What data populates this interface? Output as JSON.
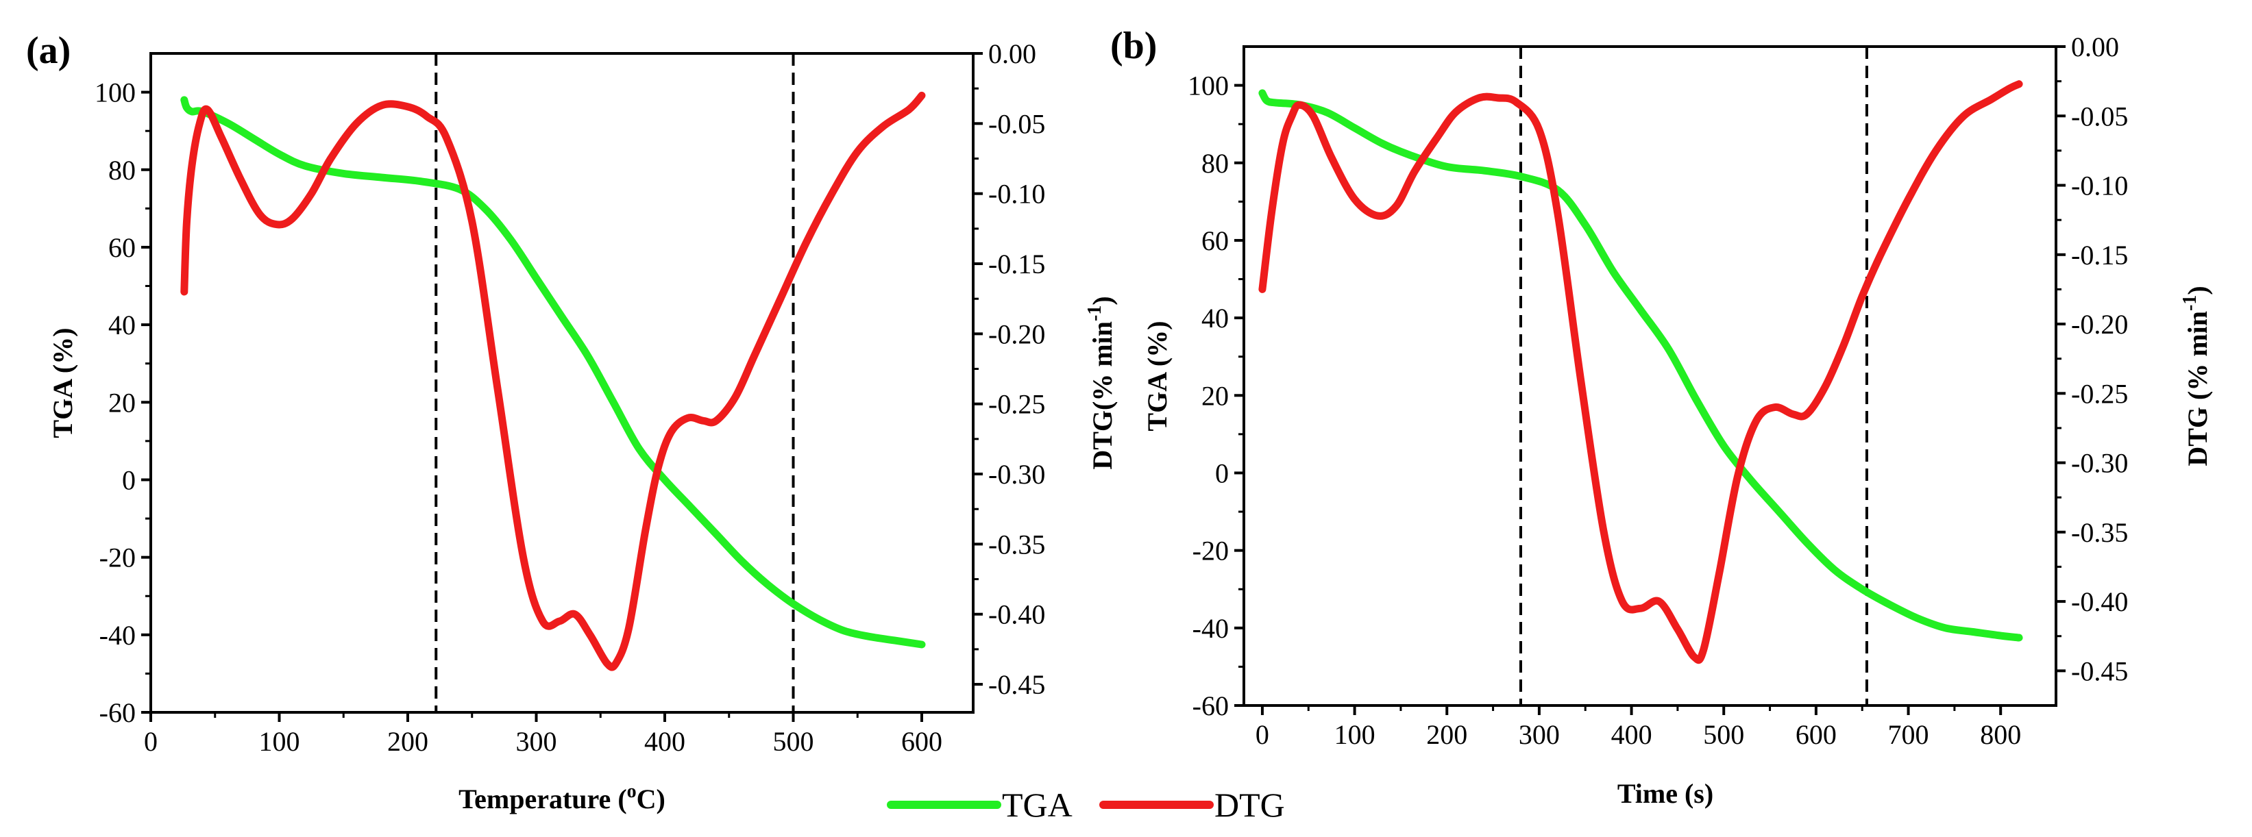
{
  "figure": {
    "panels": [
      "(a)",
      "(b)"
    ],
    "legend": [
      {
        "label": "TGA",
        "color": "#22ee22"
      },
      {
        "label": "DTG",
        "color": "#ee1c1c"
      }
    ]
  },
  "chart_data": [
    {
      "type": "line",
      "panel_label": "(a)",
      "xlabel_main": "Temperature (",
      "xlabel_sup": "o",
      "xlabel_tail": "C)",
      "ylabel": "TGA (%)",
      "y2label_main": "DTG(% min",
      "y2label_sup": "-1",
      "y2label_tail": ")",
      "xlim": [
        0,
        640
      ],
      "ylim": [
        -60,
        110
      ],
      "y2lim": [
        -0.47,
        0.0
      ],
      "xticks": [
        "0",
        "100",
        "200",
        "300",
        "400",
        "500",
        "600"
      ],
      "xtick_values": [
        0,
        100,
        200,
        300,
        400,
        500,
        600
      ],
      "yticks": [
        "-60",
        "-40",
        "-20",
        "0",
        "20",
        "40",
        "60",
        "80",
        "100"
      ],
      "ytick_values": [
        -60,
        -40,
        -20,
        0,
        20,
        40,
        60,
        80,
        100
      ],
      "y2ticks": [
        "-0.45",
        "-0.40",
        "-0.35",
        "-0.30",
        "-0.25",
        "-0.20",
        "-0.15",
        "-0.10",
        "-0.05",
        "0.00"
      ],
      "y2tick_values": [
        -0.45,
        -0.4,
        -0.35,
        -0.3,
        -0.25,
        -0.2,
        -0.15,
        -0.1,
        -0.05,
        0.0
      ],
      "vlines": [
        222,
        500
      ],
      "series": [
        {
          "name": "TGA",
          "axis": "left",
          "color": "#22ee22",
          "points": [
            [
              26,
              98
            ],
            [
              28,
              96
            ],
            [
              32,
              95
            ],
            [
              40,
              95
            ],
            [
              60,
              92
            ],
            [
              80,
              88
            ],
            [
              100,
              84
            ],
            [
              120,
              81
            ],
            [
              150,
              79
            ],
            [
              180,
              78
            ],
            [
              210,
              77
            ],
            [
              240,
              75
            ],
            [
              260,
              70
            ],
            [
              280,
              62
            ],
            [
              300,
              52
            ],
            [
              320,
              42
            ],
            [
              340,
              32
            ],
            [
              360,
              20
            ],
            [
              380,
              8
            ],
            [
              400,
              0
            ],
            [
              420,
              -7
            ],
            [
              440,
              -14
            ],
            [
              460,
              -21
            ],
            [
              480,
              -27
            ],
            [
              500,
              -32
            ],
            [
              520,
              -36
            ],
            [
              540,
              -39
            ],
            [
              560,
              -40.5
            ],
            [
              580,
              -41.5
            ],
            [
              600,
              -42.5
            ]
          ]
        },
        {
          "name": "DTG",
          "axis": "right",
          "color": "#ee1c1c",
          "points": [
            [
              26,
              -0.17
            ],
            [
              28,
              -0.12
            ],
            [
              32,
              -0.08
            ],
            [
              38,
              -0.05
            ],
            [
              44,
              -0.04
            ],
            [
              55,
              -0.06
            ],
            [
              70,
              -0.09
            ],
            [
              85,
              -0.115
            ],
            [
              98,
              -0.122
            ],
            [
              110,
              -0.118
            ],
            [
              125,
              -0.1
            ],
            [
              140,
              -0.075
            ],
            [
              160,
              -0.05
            ],
            [
              180,
              -0.037
            ],
            [
              200,
              -0.038
            ],
            [
              215,
              -0.045
            ],
            [
              230,
              -0.06
            ],
            [
              250,
              -0.12
            ],
            [
              270,
              -0.24
            ],
            [
              290,
              -0.36
            ],
            [
              305,
              -0.405
            ],
            [
              318,
              -0.405
            ],
            [
              330,
              -0.4
            ],
            [
              342,
              -0.415
            ],
            [
              355,
              -0.435
            ],
            [
              362,
              -0.435
            ],
            [
              372,
              -0.41
            ],
            [
              385,
              -0.34
            ],
            [
              395,
              -0.295
            ],
            [
              405,
              -0.27
            ],
            [
              418,
              -0.26
            ],
            [
              430,
              -0.262
            ],
            [
              440,
              -0.262
            ],
            [
              455,
              -0.245
            ],
            [
              470,
              -0.215
            ],
            [
              490,
              -0.175
            ],
            [
              510,
              -0.135
            ],
            [
              530,
              -0.1
            ],
            [
              550,
              -0.07
            ],
            [
              570,
              -0.052
            ],
            [
              590,
              -0.04
            ],
            [
              600,
              -0.03
            ]
          ]
        }
      ]
    },
    {
      "type": "line",
      "panel_label": "(b)",
      "xlabel_main": "Time (s)",
      "xlabel_sup": "",
      "xlabel_tail": "",
      "ylabel": "TGA (%)",
      "y2label_main": "DTG (% min",
      "y2label_sup": "-1",
      "y2label_tail": ")",
      "xlim": [
        -20,
        860
      ],
      "ylim": [
        -60,
        110
      ],
      "y2lim": [
        -0.475,
        0.0
      ],
      "xticks": [
        "0",
        "100",
        "200",
        "300",
        "400",
        "500",
        "600",
        "700",
        "800"
      ],
      "xtick_values": [
        0,
        100,
        200,
        300,
        400,
        500,
        600,
        700,
        800
      ],
      "yticks": [
        "-60",
        "-40",
        "-20",
        "0",
        "20",
        "40",
        "60",
        "80",
        "100"
      ],
      "ytick_values": [
        -60,
        -40,
        -20,
        0,
        20,
        40,
        60,
        80,
        100
      ],
      "y2ticks": [
        "-0.45",
        "-0.40",
        "-0.35",
        "-0.30",
        "-0.25",
        "-0.20",
        "-0.15",
        "-0.10",
        "-0.05",
        "0.00"
      ],
      "y2tick_values": [
        -0.45,
        -0.4,
        -0.35,
        -0.3,
        -0.25,
        -0.2,
        -0.15,
        -0.1,
        -0.05,
        0.0
      ],
      "vlines": [
        280,
        655
      ],
      "series": [
        {
          "name": "TGA",
          "axis": "left",
          "color": "#22ee22",
          "points": [
            [
              0,
              98
            ],
            [
              5,
              96
            ],
            [
              15,
              95.5
            ],
            [
              40,
              95
            ],
            [
              70,
              93
            ],
            [
              100,
              89
            ],
            [
              130,
              85
            ],
            [
              160,
              82
            ],
            [
              200,
              79
            ],
            [
              240,
              78
            ],
            [
              280,
              76.5
            ],
            [
              320,
              73
            ],
            [
              350,
              64
            ],
            [
              380,
              52
            ],
            [
              410,
              42
            ],
            [
              440,
              32
            ],
            [
              470,
              19
            ],
            [
              500,
              7
            ],
            [
              530,
              -2
            ],
            [
              560,
              -10
            ],
            [
              590,
              -18
            ],
            [
              620,
              -25
            ],
            [
              650,
              -30
            ],
            [
              680,
              -34
            ],
            [
              710,
              -37.5
            ],
            [
              740,
              -40
            ],
            [
              770,
              -41
            ],
            [
              800,
              -42
            ],
            [
              820,
              -42.5
            ]
          ]
        },
        {
          "name": "DTG",
          "axis": "right",
          "color": "#ee1c1c",
          "points": [
            [
              0,
              -0.175
            ],
            [
              10,
              -0.12
            ],
            [
              22,
              -0.07
            ],
            [
              32,
              -0.05
            ],
            [
              40,
              -0.042
            ],
            [
              55,
              -0.05
            ],
            [
              75,
              -0.08
            ],
            [
              100,
              -0.11
            ],
            [
              125,
              -0.122
            ],
            [
              145,
              -0.115
            ],
            [
              165,
              -0.09
            ],
            [
              190,
              -0.065
            ],
            [
              210,
              -0.047
            ],
            [
              235,
              -0.037
            ],
            [
              255,
              -0.037
            ],
            [
              275,
              -0.04
            ],
            [
              300,
              -0.06
            ],
            [
              320,
              -0.12
            ],
            [
              345,
              -0.24
            ],
            [
              370,
              -0.35
            ],
            [
              390,
              -0.4
            ],
            [
              410,
              -0.405
            ],
            [
              430,
              -0.4
            ],
            [
              450,
              -0.42
            ],
            [
              468,
              -0.44
            ],
            [
              478,
              -0.435
            ],
            [
              495,
              -0.38
            ],
            [
              515,
              -0.31
            ],
            [
              535,
              -0.27
            ],
            [
              555,
              -0.26
            ],
            [
              575,
              -0.265
            ],
            [
              590,
              -0.265
            ],
            [
              610,
              -0.245
            ],
            [
              630,
              -0.215
            ],
            [
              650,
              -0.18
            ],
            [
              670,
              -0.15
            ],
            [
              700,
              -0.11
            ],
            [
              730,
              -0.075
            ],
            [
              760,
              -0.05
            ],
            [
              790,
              -0.038
            ],
            [
              810,
              -0.03
            ],
            [
              820,
              -0.027
            ]
          ]
        }
      ]
    }
  ]
}
